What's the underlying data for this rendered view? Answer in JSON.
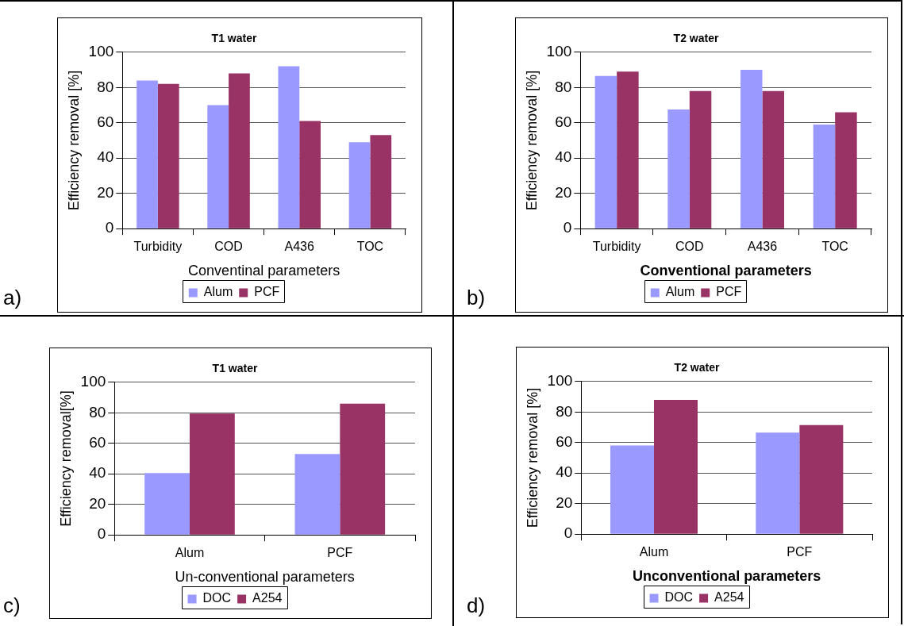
{
  "chart_data": [
    {
      "type": "bar",
      "title": "T1 water",
      "xlabel": "Conventinal parameters",
      "ylabel": "Efficiency removal [%]",
      "categories": [
        "Turbidity",
        "COD",
        "A436",
        "TOC"
      ],
      "series": [
        {
          "name": "Alum",
          "color": "#9999ff",
          "values": [
            84,
            70,
            92,
            49
          ]
        },
        {
          "name": "PCF",
          "color": "#993366",
          "values": [
            82,
            88,
            61,
            53
          ]
        }
      ],
      "ylim": [
        0,
        100
      ],
      "yticks": [
        0,
        20,
        40,
        60,
        80,
        100
      ],
      "grid": "y",
      "legend": "bottom",
      "annotations": [
        "a)"
      ]
    },
    {
      "type": "bar",
      "title": "T2 water",
      "xlabel": "Conventional parameters",
      "ylabel": "Efficiency removal [%]",
      "categories": [
        "Turbidity",
        "COD",
        "A436",
        "TOC"
      ],
      "series": [
        {
          "name": "Alum",
          "color": "#9999ff",
          "values": [
            86.5,
            67.5,
            90,
            59
          ]
        },
        {
          "name": "PCF",
          "color": "#993366",
          "values": [
            89,
            78,
            78,
            66
          ]
        }
      ],
      "ylim": [
        0,
        100
      ],
      "yticks": [
        0,
        20,
        40,
        60,
        80,
        100
      ],
      "grid": "y",
      "legend": "bottom",
      "annotations": [
        "b)"
      ]
    },
    {
      "type": "bar",
      "title": "T1 water",
      "xlabel": "Un-conventional parameters",
      "ylabel": "Efficiency removal[%]",
      "categories": [
        "Alum",
        "PCF"
      ],
      "series": [
        {
          "name": "DOC",
          "color": "#9999ff",
          "values": [
            40.5,
            53
          ]
        },
        {
          "name": "A254",
          "color": "#993366",
          "values": [
            79.5,
            86
          ]
        }
      ],
      "ylim": [
        0,
        100
      ],
      "yticks": [
        0,
        20,
        40,
        60,
        80,
        100
      ],
      "grid": "y",
      "legend": "bottom",
      "annotations": [
        "c)"
      ]
    },
    {
      "type": "bar",
      "title": "T2 water",
      "xlabel": "Unconventional parameters",
      "ylabel": "Efficiency removal [%]",
      "categories": [
        "Alum",
        "PCF"
      ],
      "series": [
        {
          "name": "DOC",
          "color": "#9999ff",
          "values": [
            58,
            66.5
          ]
        },
        {
          "name": "A254",
          "color": "#993366",
          "values": [
            88,
            71.5
          ]
        }
      ],
      "ylim": [
        0,
        100
      ],
      "yticks": [
        0,
        20,
        40,
        60,
        80,
        100
      ],
      "grid": "y",
      "legend": "bottom",
      "annotations": [
        "d)"
      ]
    }
  ]
}
